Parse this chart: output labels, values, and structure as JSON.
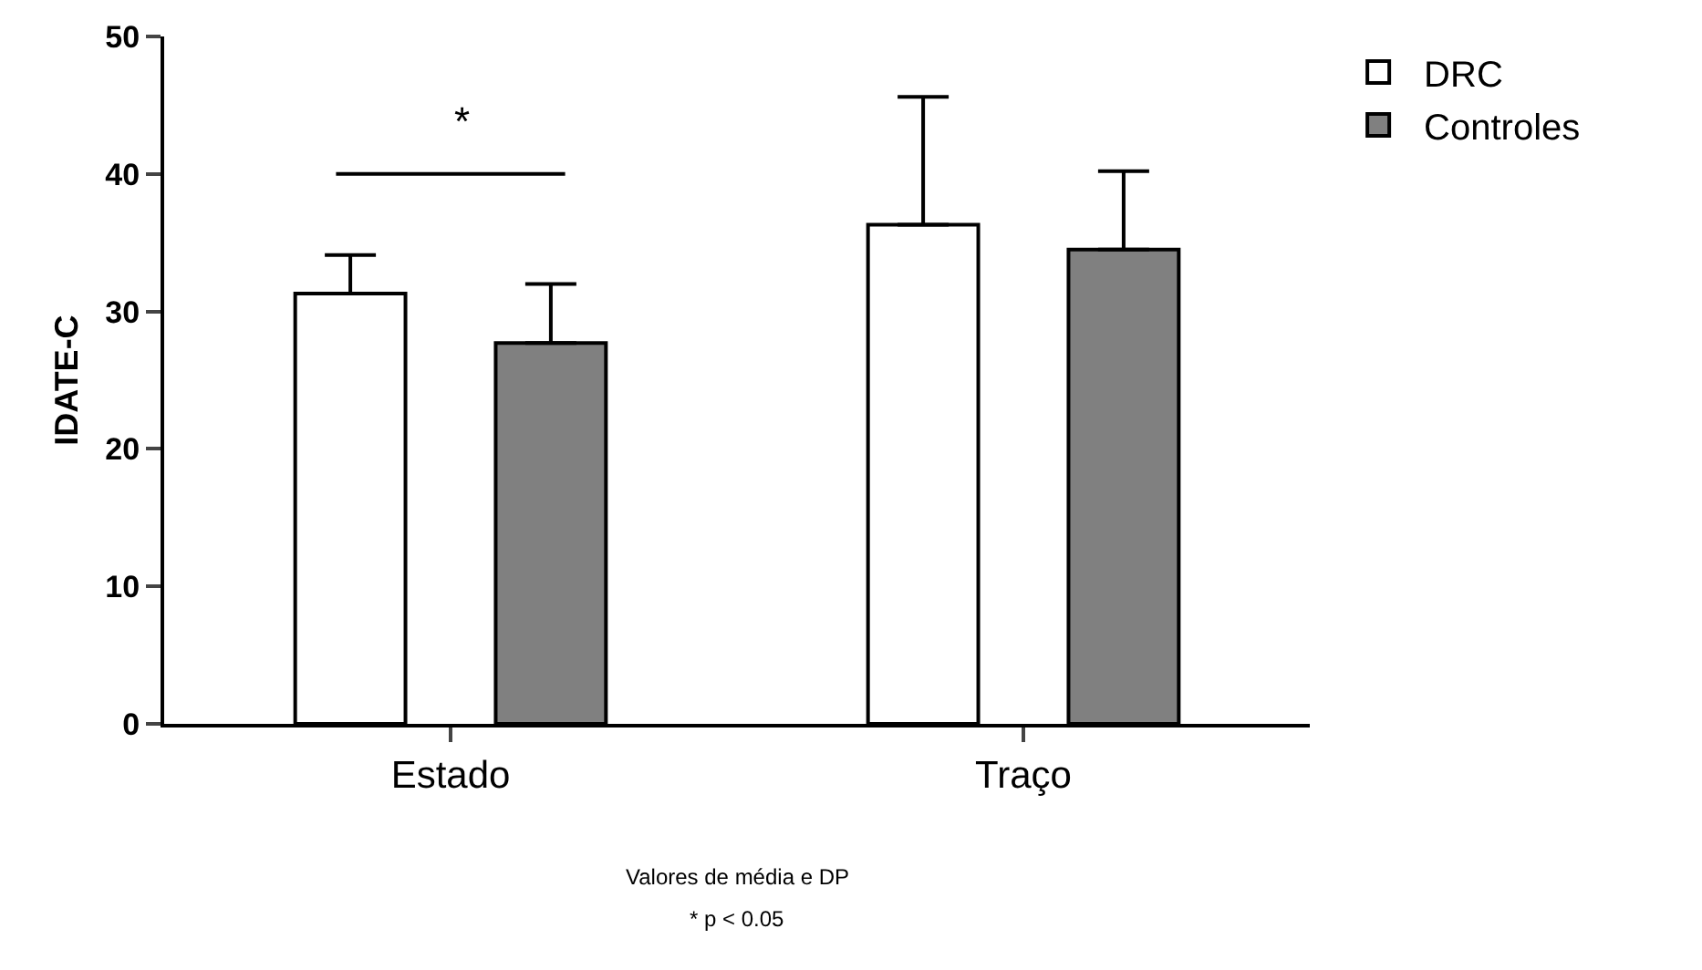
{
  "chart_data": {
    "type": "bar",
    "ylabel": "IDATE-C",
    "categories": [
      "Estado",
      "Traço"
    ],
    "series": [
      {
        "name": "DRC",
        "color": "#ffffff",
        "values": [
          31.3,
          36.3
        ],
        "errors": [
          [
            31.3,
            34.1
          ],
          [
            36.3,
            45.6
          ]
        ]
      },
      {
        "name": "Controles",
        "color": "#808080",
        "values": [
          27.7,
          34.5
        ],
        "errors": [
          [
            27.7,
            32.0
          ],
          [
            34.5,
            40.2
          ]
        ]
      }
    ],
    "ylim": [
      0,
      50
    ],
    "yticks": [
      0,
      10,
      20,
      30,
      40,
      50
    ],
    "grid": false,
    "legend": "top right",
    "annotations": [
      "*",
      "Valores de média e DP",
      "* p < 0.05"
    ]
  }
}
